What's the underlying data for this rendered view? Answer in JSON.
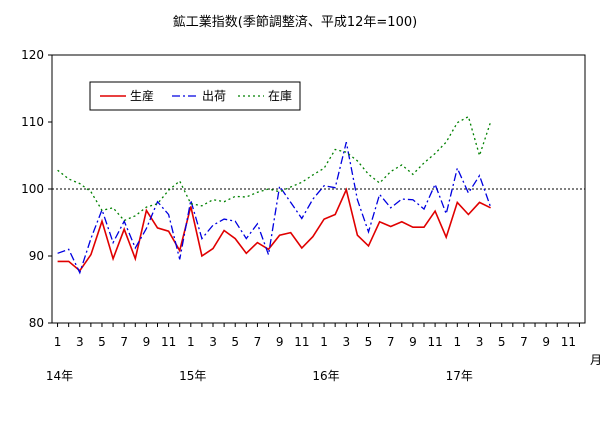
{
  "chart_data": {
    "type": "line",
    "title": "鉱工業指数(季節調整済、平成12年=100)",
    "xlabel": "",
    "ylabel": "",
    "x_unit": "月",
    "ylim": [
      80,
      120
    ],
    "yticks": [
      80,
      90,
      100,
      110,
      120
    ],
    "grid": false,
    "legend_position": "top-left",
    "reference_line": 100,
    "month_labels": [
      "1",
      "3",
      "5",
      "7",
      "9",
      "11",
      "1",
      "3",
      "5",
      "7",
      "9",
      "11",
      "1",
      "3",
      "5",
      "7",
      "9",
      "11",
      "1",
      "3",
      "5",
      "7",
      "9",
      "11"
    ],
    "year_labels": [
      "14年",
      "15年",
      "16年",
      "17年"
    ],
    "series": [
      {
        "name": "生産",
        "color": "#e00000",
        "style": "solid",
        "values": [
          89.2,
          89.2,
          87.8,
          90.2,
          95.2,
          89.6,
          94.0,
          89.6,
          96.8,
          94.2,
          93.7,
          90.8,
          97.4,
          90.0,
          91.1,
          93.8,
          92.6,
          90.4,
          92.0,
          91.0,
          93.1,
          93.5,
          91.2,
          92.9,
          95.5,
          96.2,
          99.9,
          93.1,
          91.5,
          95.1,
          94.4,
          95.1,
          94.3,
          94.3,
          96.7,
          92.8,
          98.0,
          96.2,
          98.0,
          97.2
        ]
      },
      {
        "name": "出荷",
        "color": "#0000e0",
        "style": "dashdot",
        "values": [
          90.4,
          91.0,
          87.5,
          92.6,
          96.9,
          92.0,
          95.2,
          91.2,
          94.1,
          98.1,
          96.2,
          89.5,
          98.3,
          92.6,
          94.6,
          95.5,
          95.2,
          92.6,
          94.8,
          90.2,
          100.4,
          98.0,
          95.6,
          98.5,
          100.5,
          100.2,
          107.0,
          98.4,
          93.6,
          99.2,
          97.2,
          98.5,
          98.4,
          97.0,
          100.7,
          96.3,
          103.1,
          99.4,
          102.0,
          97.3
        ]
      },
      {
        "name": "在庫",
        "color": "#008000",
        "style": "dotted",
        "values": [
          102.8,
          101.5,
          100.8,
          99.6,
          96.8,
          97.2,
          95.3,
          96.0,
          97.3,
          97.8,
          99.8,
          101.2,
          97.8,
          97.5,
          98.4,
          98.1,
          98.9,
          98.8,
          99.5,
          100.0,
          99.6,
          100.3,
          101.0,
          102.1,
          103.1,
          105.9,
          105.5,
          104.2,
          102.2,
          100.9,
          102.6,
          103.6,
          102.2,
          103.9,
          105.3,
          107.0,
          109.9,
          110.8,
          105.0,
          110.0
        ]
      }
    ]
  }
}
